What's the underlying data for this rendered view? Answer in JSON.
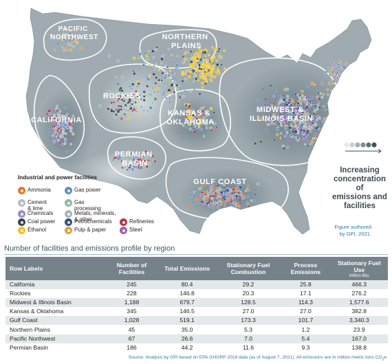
{
  "map": {
    "regions": {
      "pacific_northwest": [
        "PACIFIC",
        "NORTHWEST"
      ],
      "northern_plains": [
        "NORTHERN",
        "PLAINS"
      ],
      "rockies": "ROCKIES",
      "california": "CALIFORNIA",
      "kansas_oklahoma": [
        "KANSAS &",
        "OKLAHOMA"
      ],
      "midwest_illinois": [
        "MIDWEST &",
        "ILLINOIS BASIN"
      ],
      "permian_basin": [
        "PERMIAN",
        "BASIN"
      ],
      "gulf_coast": "GULF COAST"
    },
    "colors": {
      "land": "#9fabb0",
      "boundary": "#ffffff",
      "concentration_scale": [
        "#e4ebee",
        "#c4d1d6",
        "#9fb0b7",
        "#7b8f98",
        "#596f79",
        "#3e545e"
      ]
    }
  },
  "legend": {
    "title": "Industrial and power facilities",
    "items": [
      {
        "key": "ammonia",
        "label": "Ammonia",
        "icon": "ammonia-icon",
        "color": "#e8762c"
      },
      {
        "key": "gas_power",
        "label": "Gas power",
        "icon": "gas-power-icon",
        "color": "#5b8fc9"
      },
      {
        "key": "cement",
        "label": "Cement\n& lime",
        "icon": "cement-icon",
        "color": "#b8bcc4"
      },
      {
        "key": "gas_processing",
        "label": "Gas\nprocessing",
        "icon": "gas-processing-icon",
        "color": "#8fb8a6"
      },
      {
        "key": "chemicals",
        "label": "Chemicals",
        "icon": "chemicals-icon",
        "color": "#9b8dc8"
      },
      {
        "key": "metals",
        "label": "Metals, minerals,\n& other",
        "icon": "metals-icon",
        "color": "#a8b4bc"
      },
      {
        "key": "coal_power",
        "label": "Coal power",
        "icon": "coal-power-icon",
        "color": "#3c4650"
      },
      {
        "key": "petrochemicals",
        "label": "Petrochemicals",
        "icon": "petrochemicals-icon",
        "color": "#34517c"
      },
      {
        "key": "refineries",
        "label": "Refineries",
        "icon": "refineries-icon",
        "color": "#b23a48"
      },
      {
        "key": "ethanol",
        "label": "Ethanol",
        "icon": "ethanol-icon",
        "color": "#f4c21b"
      },
      {
        "key": "pulp_paper",
        "label": "Pulp & paper",
        "icon": "pulp-paper-icon",
        "color": "#d9a441"
      },
      {
        "key": "steel",
        "label": "Steel",
        "icon": "steel-icon",
        "color": "#a35fb0"
      }
    ]
  },
  "concentration_legend": {
    "text": [
      "Increasing",
      "concentration of",
      "emissions and",
      "facilities"
    ]
  },
  "figure_credit": [
    "Figure authored",
    "by GPI, 2021."
  ],
  "table": {
    "title": "Number of facilities and emissions profile by region",
    "headers": [
      {
        "label": "Row Labels"
      },
      {
        "label": "Number of Facilities"
      },
      {
        "label": "Total Emissions"
      },
      {
        "label": "Stationary Fuel Combustion"
      },
      {
        "label": "Process Emissions"
      },
      {
        "label": "Stationary Fuel Use",
        "sub": "trillion Btu"
      }
    ],
    "rows": [
      [
        "California",
        "245",
        "80.4",
        "29.2",
        "25.8",
        "466.3"
      ],
      [
        "Rockies",
        "228",
        "146.8",
        "20.3",
        "17.1",
        "276.2"
      ],
      [
        "Midwest & Illinois Basin",
        "1,188",
        "679.7",
        "128.5",
        "114.3",
        "1,577.6"
      ],
      [
        "Kansas & Oklahoma",
        "345",
        "146.5",
        "27.0",
        "27.0",
        "382.8"
      ],
      [
        "Gulf Coast",
        "1,028",
        "519.1",
        "173.3",
        "101.7",
        "3,340.3"
      ],
      [
        "Northern Plains",
        "45",
        "35.0",
        "5.3",
        "1.2",
        "23.9"
      ],
      [
        "Pacific Northwest",
        "67",
        "26.6",
        "7.0",
        "5.4",
        "167.0"
      ],
      [
        "Permian Basin",
        "186",
        "44.2",
        "11.6",
        "9.3",
        "138.8"
      ]
    ]
  },
  "source_note": {
    "text": "Source: Analysis by GPI based on EPA GHGRP 2019 data (as of August 7, 2021). All emissions are in million metric tons CO",
    "sub": "2",
    "suffix": "e."
  }
}
